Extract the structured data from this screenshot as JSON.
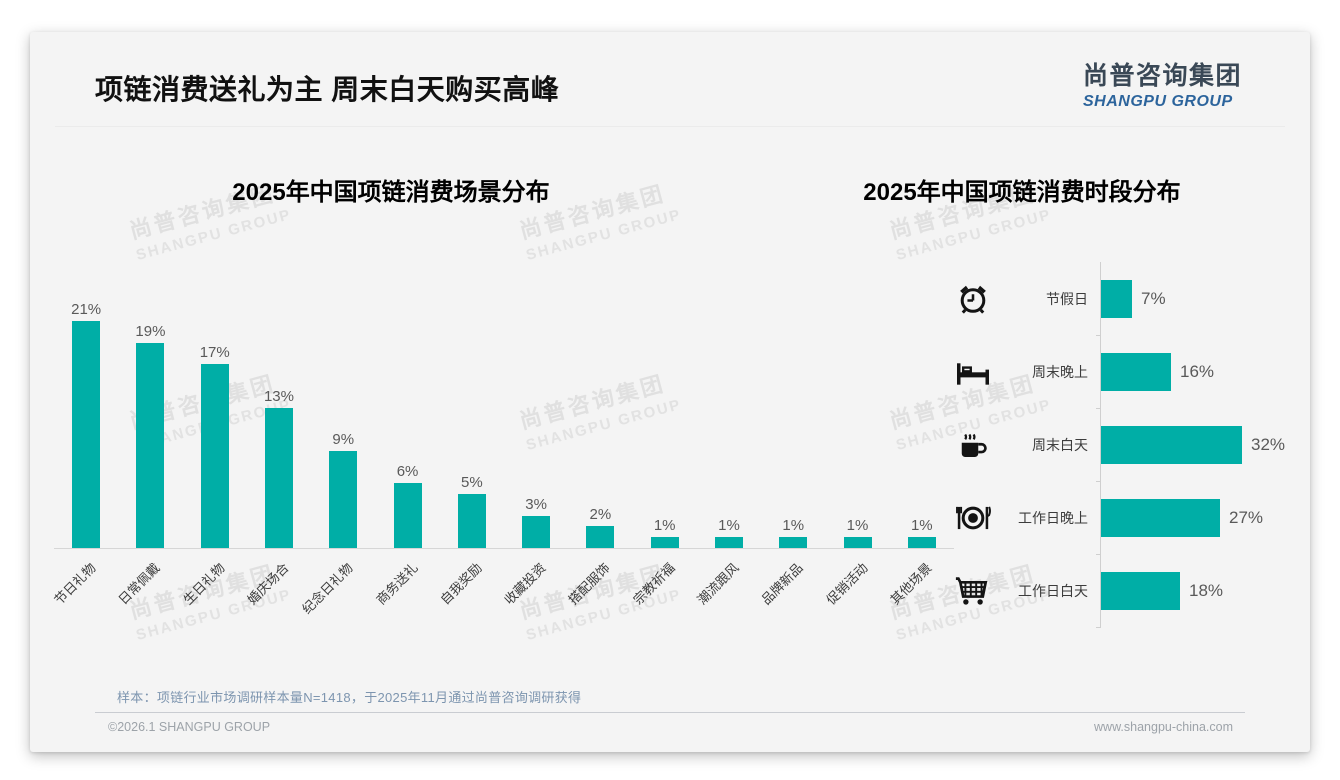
{
  "page": {
    "title": "项链消费送礼为主 周末白天购买高峰",
    "logo": {
      "cn": "尚普咨询集团",
      "en": "SHANGPU GROUP"
    },
    "watermark": {
      "cn": "尚普咨询集团",
      "en": "SHANGPU GROUP"
    },
    "footer": {
      "sample_note": "样本：项链行业市场调研样本量N=1418，于2025年11月通过尚普咨询调研获得",
      "copyright": "©2026.1 SHANGPU GROUP",
      "website": "www.shangpu-china.com"
    }
  },
  "colors": {
    "bar_teal": "#00AEA6",
    "logo_blue": "#2C649C",
    "note_blue_gray": "#7D95AF"
  },
  "chart_data": [
    {
      "type": "bar",
      "orientation": "vertical",
      "title": "2025年中国项链消费场景分布",
      "categories": [
        "节日礼物",
        "日常佩戴",
        "生日礼物",
        "婚庆场合",
        "纪念日礼物",
        "商务送礼",
        "自我奖励",
        "收藏投资",
        "搭配服饰",
        "宗教祈福",
        "潮流跟风",
        "品牌新品",
        "促销活动",
        "其他场景"
      ],
      "values": [
        21,
        19,
        17,
        13,
        9,
        6,
        5,
        3,
        2,
        1,
        1,
        1,
        1,
        1
      ],
      "unit": "%",
      "ylim": [
        0,
        25
      ],
      "grid": false,
      "legend": "none",
      "value_labels": "above bars",
      "category_label_rotation": -45
    },
    {
      "type": "bar",
      "orientation": "horizontal",
      "title": "2025年中国项链消费时段分布",
      "categories": [
        "节假日",
        "周末晚上",
        "周末白天",
        "工作日晚上",
        "工作日白天"
      ],
      "values": [
        7,
        16,
        32,
        27,
        18
      ],
      "unit": "%",
      "icons": [
        "alarm-clock-icon",
        "bed-icon",
        "coffee-cup-icon",
        "dining-icon",
        "shopping-cart-icon"
      ],
      "xlim": [
        0,
        35
      ],
      "grid": false,
      "legend": "none",
      "value_labels": "right of bars"
    }
  ]
}
